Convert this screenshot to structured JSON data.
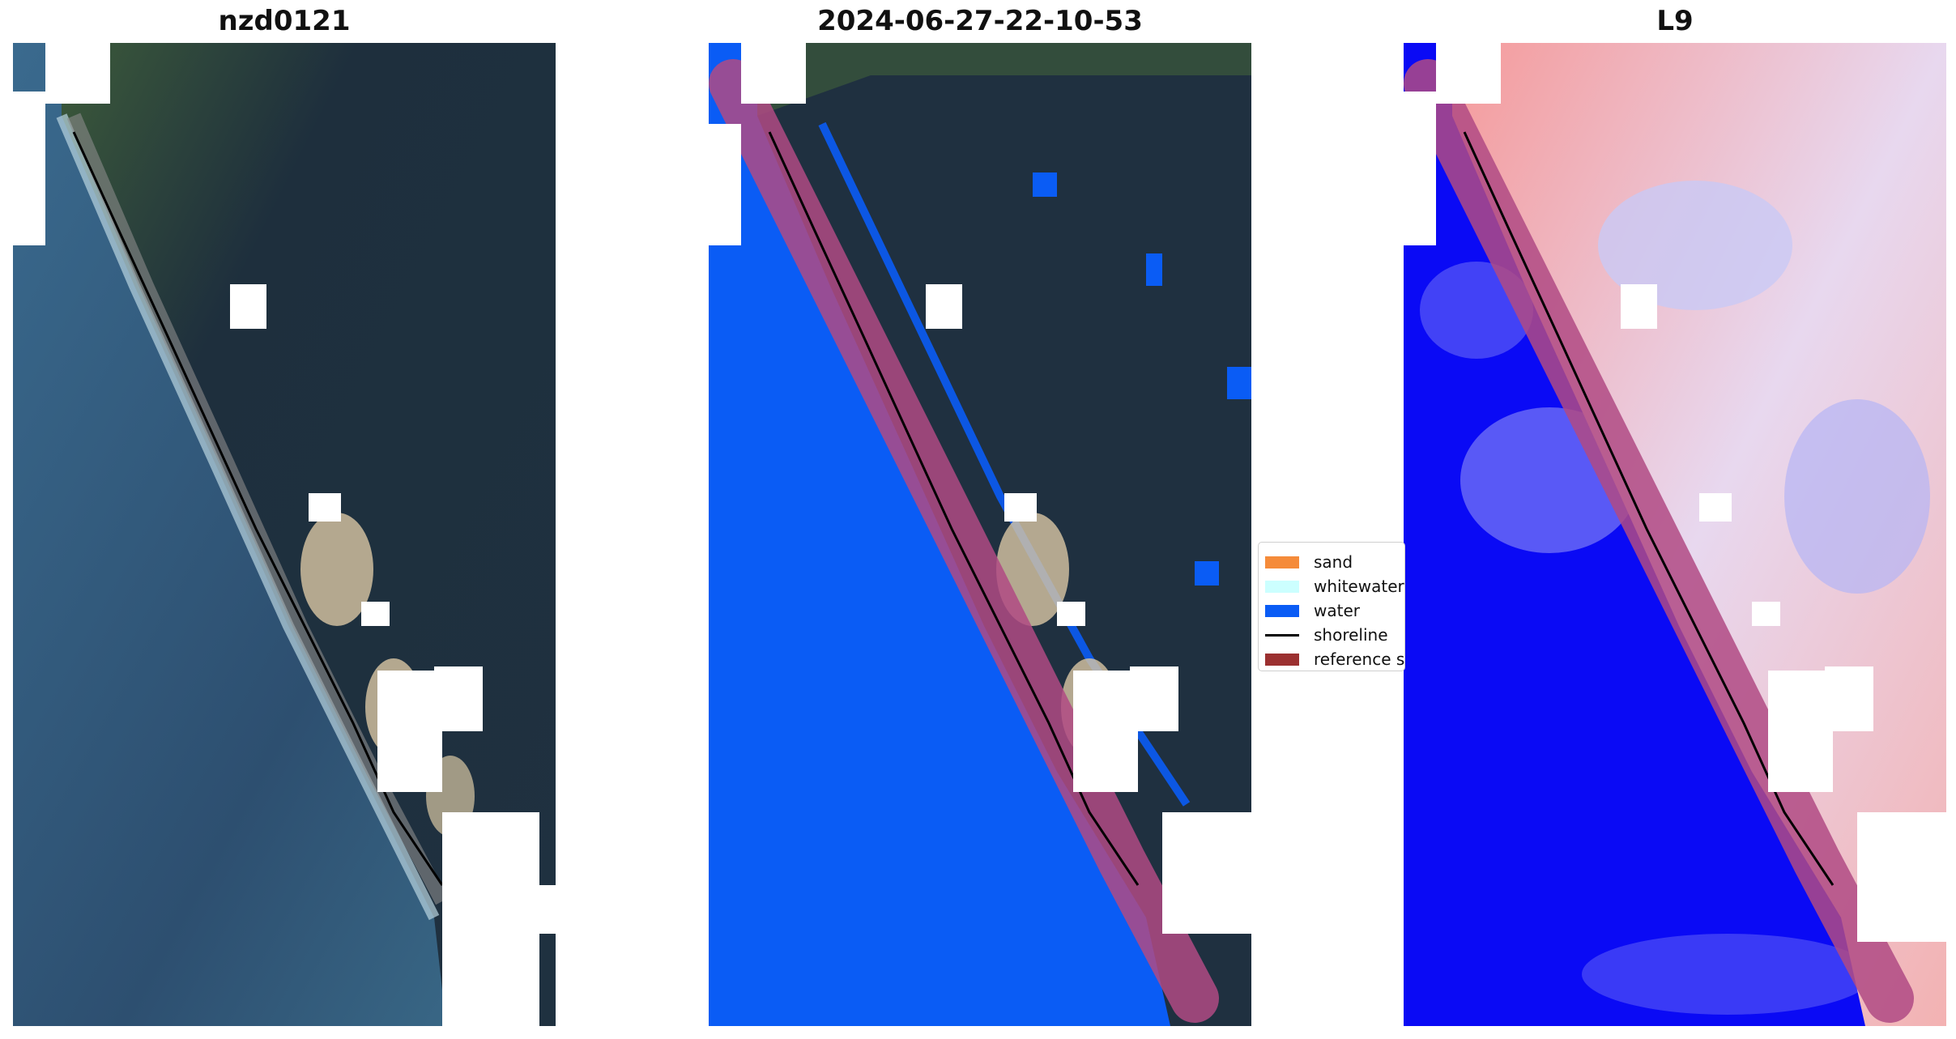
{
  "panels": [
    {
      "title": "nzd0121"
    },
    {
      "title": "2024-06-27-22-10-53"
    },
    {
      "title": "L9"
    }
  ],
  "legend": {
    "placement": "center",
    "items": [
      {
        "label": "sand",
        "color": "#f58b3a",
        "kind": "patch"
      },
      {
        "label": "whitewater",
        "color": "#ccffff",
        "kind": "patch"
      },
      {
        "label": "water",
        "color": "#0a5cf5",
        "kind": "patch"
      },
      {
        "label": "shoreline",
        "color": "#000000",
        "kind": "line"
      },
      {
        "label": "reference shoreline",
        "color": "#9b3030",
        "kind": "patch"
      }
    ]
  },
  "colors": {
    "sea_rgb": "#2f5374",
    "land_rgb": "#1f3040",
    "water_class": "#0a5cf5",
    "reference_buffer": "#b04a84",
    "index_low": "#0a0af5",
    "index_high": "#f08a8a"
  }
}
